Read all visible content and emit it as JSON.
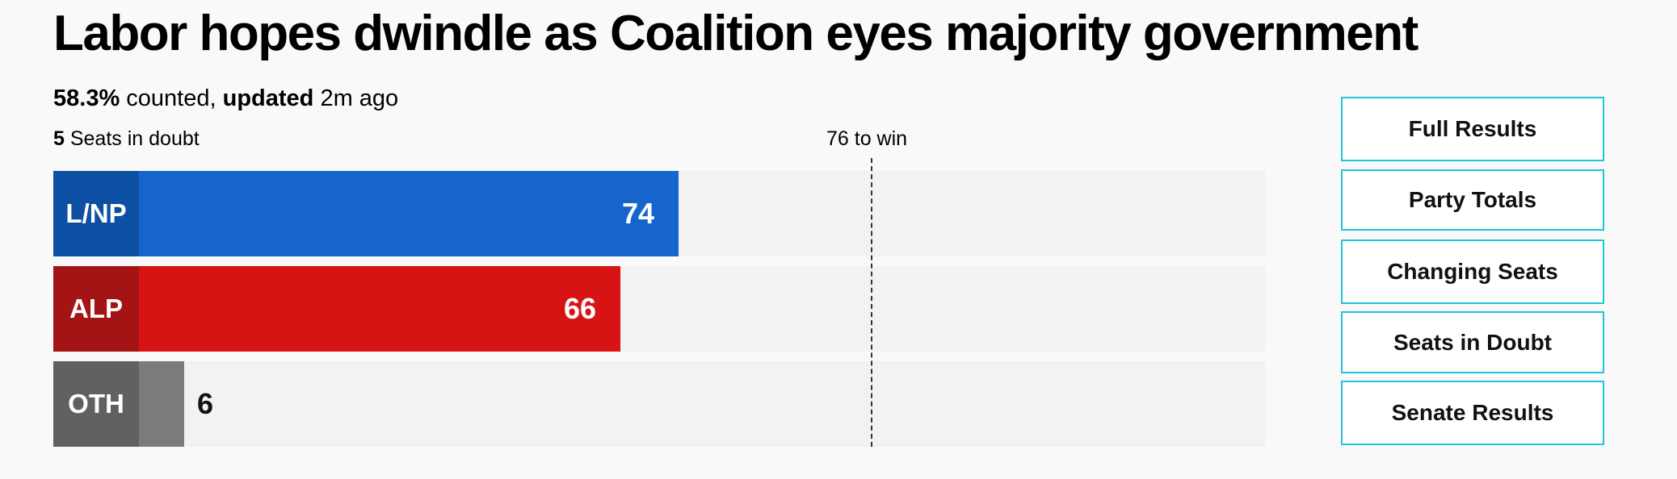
{
  "headline": "Labor hopes dwindle as Coalition eyes majority government",
  "status": {
    "percent": "58.3%",
    "counted_text": " counted, ",
    "updated_label": "updated",
    "updated_time": " 2m ago"
  },
  "seats_in_doubt": {
    "count": "5",
    "label": " Seats in doubt"
  },
  "majority": {
    "label": "76 to win",
    "seats": 76
  },
  "chart_data": {
    "type": "bar",
    "title": "Labor hopes dwindle as Coalition eyes majority government",
    "categories": [
      "L/NP",
      "ALP",
      "OTH"
    ],
    "values": [
      74,
      66,
      6
    ],
    "colors": {
      "L/NP": {
        "label_bg": "#0d4fa3",
        "bar": "#1565cc"
      },
      "ALP": {
        "label_bg": "#a51414",
        "bar": "#d71414"
      },
      "OTH": {
        "label_bg": "#616161",
        "bar": "#7b7b7b"
      }
    },
    "xlim": [
      0,
      151
    ],
    "threshold": 76,
    "threshold_label": "76 to win",
    "xlabel": "",
    "ylabel": ""
  },
  "nav": {
    "buttons": [
      "Full Results",
      "Party Totals",
      "Changing Seats",
      "Seats in Doubt",
      "Senate Results"
    ],
    "border_color": "#22c4dc"
  }
}
